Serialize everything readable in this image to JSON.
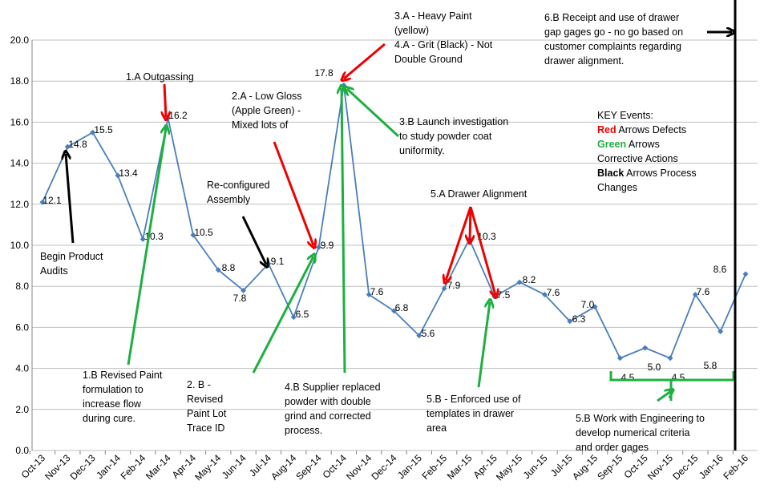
{
  "chart_data": {
    "type": "line",
    "categories": [
      "Oct-13",
      "Nov-13",
      "Dec-13",
      "Jan-14",
      "Feb-14",
      "Mar-14",
      "Apr-14",
      "May-14",
      "Jun-14",
      "Jul-14",
      "Aug-14",
      "Sep-14",
      "Oct-14",
      "Nov-14",
      "Dec-14",
      "Jan-15",
      "Feb-15",
      "Mar-15",
      "Apr-15",
      "May-15",
      "Jun-15",
      "Jul-15",
      "Aug-15",
      "Sep-15",
      "Oct-15",
      "Nov-15",
      "Dec-15",
      "Jan-16",
      "Feb-16"
    ],
    "series": [
      {
        "color": "#4a7ebb",
        "values": [
          12.1,
          14.8,
          15.5,
          13.4,
          10.3,
          16.2,
          10.5,
          8.8,
          7.8,
          9.1,
          6.5,
          9.9,
          17.8,
          7.6,
          6.8,
          5.6,
          7.9,
          10.3,
          7.5,
          8.2,
          7.6,
          6.3,
          7.0,
          4.5,
          5.0,
          4.5,
          7.6,
          5.8,
          8.6
        ],
        "value_labels": [
          "12.1",
          "14.8",
          "15.5",
          "13.4",
          "10.3",
          "16.2",
          "10.5",
          "8.8",
          "7.8",
          "9.1",
          "6.5",
          "9.9",
          "17.8",
          "7.6",
          "6.8",
          "5.6",
          "7.9",
          "10.3",
          "7.5",
          "8.2",
          "7.6",
          "6.3",
          "7.0",
          "4.5",
          "5.0",
          "4.5",
          "7.6",
          "5.8",
          "8.6"
        ]
      }
    ],
    "ylim": [
      0,
      20
    ],
    "yticks": [
      {
        "value": 0,
        "label": "0.0"
      },
      {
        "value": 2,
        "label": "2.0"
      },
      {
        "value": 4,
        "label": "4.0"
      },
      {
        "value": 6,
        "label": "6.0"
      },
      {
        "value": 8,
        "label": "8.0"
      },
      {
        "value": 10,
        "label": "10.0"
      },
      {
        "value": 12,
        "label": "12.0"
      },
      {
        "value": 14,
        "label": "14.0"
      },
      {
        "value": 16,
        "label": "16.0"
      },
      {
        "value": 18,
        "label": "18.0"
      },
      {
        "value": 20,
        "label": "20.0"
      }
    ],
    "grid": true,
    "annotations": [
      [
        "1.A Outgassing"
      ],
      [
        "2.A - Low Gloss",
        "(Apple Green) -",
        "Mixed lots of"
      ],
      [
        "3.A - Heavy Paint",
        "(yellow)",
        "4.A - Grit (Black) - Not",
        "Double Ground"
      ],
      [
        "3.B Launch investigation",
        "to study powder coat",
        "uniformity."
      ],
      [
        "Re-configured",
        "Assembly"
      ],
      [
        "Begin Product",
        "Audits"
      ],
      [
        "1.B Revised Paint",
        "formulation to",
        "increase flow",
        "during cure."
      ],
      [
        "2. B -",
        "Revised",
        "Paint Lot",
        "Trace ID"
      ],
      [
        "4.B Supplier replaced",
        "powder with double",
        "grind and corrected",
        "process."
      ],
      [
        "5.A Drawer Alignment"
      ],
      [
        "5.B - Enforced use of",
        "templates in drawer",
        "area"
      ],
      [
        "5.B Work with Engineering to",
        "develop numerical criteria",
        "and order gages"
      ],
      [
        "6.B Receipt  and use of drawer",
        "gap gages go - no go based on",
        "customer complaints regarding",
        "drawer alignment."
      ]
    ],
    "key": [
      [
        "KEY Events:"
      ],
      [
        "Red",
        " Arrows Defects"
      ],
      [
        "Green",
        " Arrows"
      ],
      [
        "Corrective Actions"
      ],
      [
        "Black",
        " Arrows  Process"
      ],
      [
        "Changes"
      ]
    ]
  }
}
